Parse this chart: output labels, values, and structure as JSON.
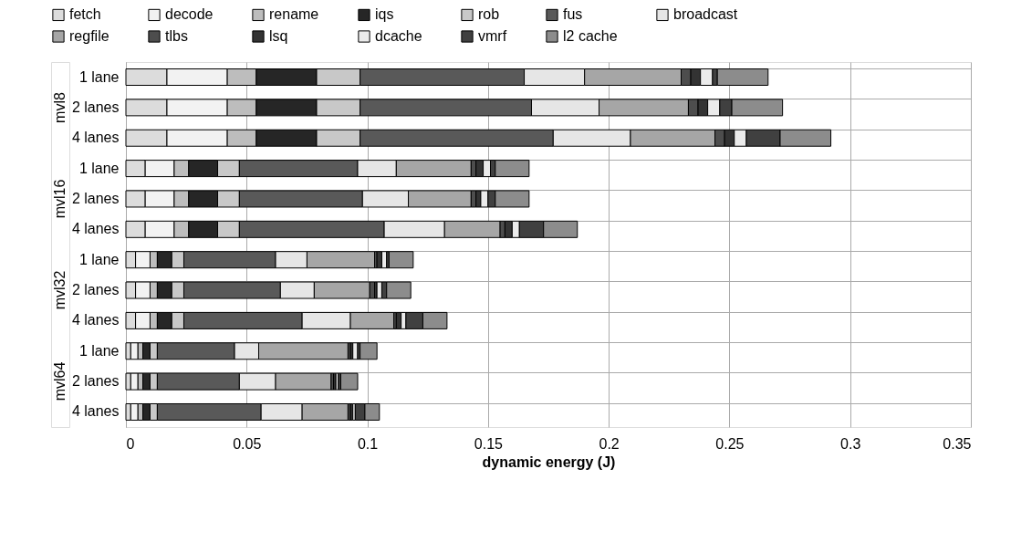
{
  "chart_data": {
    "type": "bar",
    "orientation": "horizontal",
    "stacked": true,
    "xlabel": "dynamic energy (J)",
    "categories": [
      "1 lane",
      "2 lanes",
      "4 lanes",
      "1 lane",
      "2 lanes",
      "4 lanes",
      "1 lane",
      "2 lanes",
      "4 lanes",
      "1 lane",
      "2 lanes",
      "4 lanes"
    ],
    "annotations": [
      "mvl8",
      "mvl16",
      "mvl32",
      "mvl64"
    ],
    "xlim": [
      0,
      0.35
    ],
    "xticks": [
      0,
      0.05,
      0.1,
      0.15,
      0.2,
      0.25,
      0.3,
      0.35
    ],
    "grid": true,
    "legend": "top",
    "series": [
      {
        "name": "fetch",
        "color": "#dcdcdc",
        "values": [
          0.017,
          0.017,
          0.017,
          0.008,
          0.008,
          0.008,
          0.004,
          0.004,
          0.004,
          0.002,
          0.002,
          0.002
        ]
      },
      {
        "name": "decode",
        "color": "#f2f2f2",
        "values": [
          0.025,
          0.025,
          0.025,
          0.012,
          0.012,
          0.012,
          0.006,
          0.006,
          0.006,
          0.003,
          0.003,
          0.003
        ]
      },
      {
        "name": "rename",
        "color": "#bdbdbd",
        "values": [
          0.012,
          0.012,
          0.012,
          0.006,
          0.006,
          0.006,
          0.003,
          0.003,
          0.003,
          0.002,
          0.002,
          0.002
        ]
      },
      {
        "name": "iqs",
        "color": "#262626",
        "values": [
          0.025,
          0.025,
          0.025,
          0.012,
          0.012,
          0.012,
          0.006,
          0.006,
          0.006,
          0.003,
          0.003,
          0.003
        ]
      },
      {
        "name": "rob",
        "color": "#c8c8c8",
        "values": [
          0.018,
          0.018,
          0.018,
          0.009,
          0.009,
          0.009,
          0.005,
          0.005,
          0.005,
          0.003,
          0.003,
          0.003
        ]
      },
      {
        "name": "fus",
        "color": "#595959",
        "values": [
          0.068,
          0.071,
          0.08,
          0.049,
          0.051,
          0.06,
          0.038,
          0.04,
          0.049,
          0.032,
          0.034,
          0.043
        ]
      },
      {
        "name": "broadcast",
        "color": "#e6e6e6",
        "values": [
          0.025,
          0.028,
          0.032,
          0.016,
          0.019,
          0.025,
          0.013,
          0.014,
          0.02,
          0.01,
          0.015,
          0.017
        ]
      },
      {
        "name": "regfile",
        "color": "#a6a6a6",
        "values": [
          0.04,
          0.037,
          0.035,
          0.031,
          0.026,
          0.023,
          0.028,
          0.023,
          0.018,
          0.037,
          0.023,
          0.019
        ]
      },
      {
        "name": "tlbs",
        "color": "#4d4d4d",
        "values": [
          0.004,
          0.004,
          0.004,
          0.002,
          0.002,
          0.002,
          0.001,
          0.002,
          0.001,
          0.001,
          0.001,
          0.001
        ]
      },
      {
        "name": "lsq",
        "color": "#333333",
        "values": [
          0.004,
          0.004,
          0.004,
          0.003,
          0.002,
          0.003,
          0.002,
          0.001,
          0.002,
          0.001,
          0.001,
          0.001
        ]
      },
      {
        "name": "dcache",
        "color": "#ebebeb",
        "values": [
          0.005,
          0.005,
          0.005,
          0.003,
          0.003,
          0.003,
          0.002,
          0.002,
          0.002,
          0.002,
          0.001,
          0.001
        ]
      },
      {
        "name": "vmrf",
        "color": "#404040",
        "values": [
          0.002,
          0.005,
          0.014,
          0.002,
          0.003,
          0.01,
          0.001,
          0.002,
          0.007,
          0.001,
          0.001,
          0.004
        ]
      },
      {
        "name": "l2 cache",
        "color": "#8c8c8c",
        "values": [
          0.021,
          0.021,
          0.021,
          0.014,
          0.014,
          0.014,
          0.01,
          0.01,
          0.01,
          0.007,
          0.007,
          0.006
        ]
      }
    ]
  }
}
